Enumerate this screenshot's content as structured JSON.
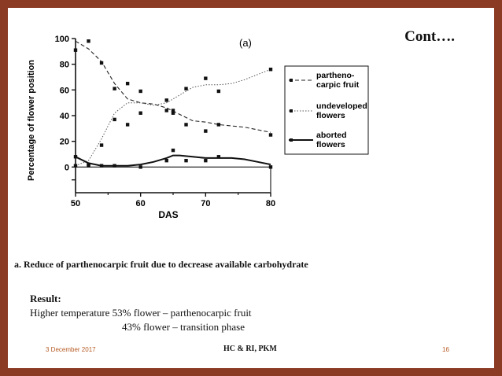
{
  "slide": {
    "title": "Cont….",
    "caption": "a. Reduce of parthenocarpic fruit due to decrease available carbohydrate",
    "result_label": "Result:",
    "result_line1": "Higher temperature 53% flower – parthenocarpic fruit",
    "result_line2": "43% flower – transition phase",
    "footer_date": "3 December 2017",
    "footer_center": "HC & RI, PKM",
    "footer_page": "16"
  },
  "chart_data": {
    "type": "line",
    "panel_label": "(a)",
    "xlabel": "DAS",
    "ylabel": "Percentage of flower position",
    "xlim": [
      50,
      80
    ],
    "ylim": [
      -20,
      100
    ],
    "x_ticks": [
      50,
      60,
      70,
      80
    ],
    "y_ticks": [
      0,
      20,
      40,
      60,
      80,
      100
    ],
    "legend_position": "right",
    "series": [
      {
        "name_lines": [
          "partheno-",
          "carpic fruit"
        ],
        "style": "dashed",
        "curve_x": [
          50,
          52,
          54,
          56,
          58,
          60,
          62,
          64,
          66,
          68,
          70,
          72,
          74,
          76,
          78,
          80
        ],
        "curve_y": [
          98,
          92,
          82,
          65,
          53,
          50,
          49,
          46,
          41,
          36,
          35,
          33,
          32,
          31,
          29,
          27
        ],
        "points": [
          [
            50,
            91
          ],
          [
            52,
            98
          ],
          [
            54,
            81
          ],
          [
            56,
            61
          ],
          [
            58,
            33
          ],
          [
            60,
            59
          ],
          [
            64,
            52
          ],
          [
            65,
            42
          ],
          [
            67,
            33
          ],
          [
            70,
            28
          ],
          [
            72,
            33
          ],
          [
            80,
            25
          ]
        ]
      },
      {
        "name_lines": [
          "undeveloped",
          "flowers"
        ],
        "style": "dotted",
        "curve_x": [
          50,
          52,
          54,
          56,
          58,
          60,
          62,
          64,
          66,
          68,
          70,
          72,
          74,
          76,
          78,
          80
        ],
        "curve_y": [
          1,
          5,
          22,
          42,
          50,
          50,
          48,
          50,
          56,
          62,
          64,
          64,
          65,
          68,
          72,
          76
        ],
        "points": [
          [
            50,
            1
          ],
          [
            52,
            1
          ],
          [
            54,
            17
          ],
          [
            56,
            37
          ],
          [
            58,
            65
          ],
          [
            60,
            42
          ],
          [
            64,
            44
          ],
          [
            65,
            44
          ],
          [
            67,
            61
          ],
          [
            70,
            69
          ],
          [
            72,
            59
          ],
          [
            80,
            76
          ]
        ]
      },
      {
        "name_lines": [
          "aborted",
          "flowers"
        ],
        "style": "solid",
        "curve_x": [
          50,
          52,
          54,
          56,
          58,
          60,
          62,
          64,
          65,
          66,
          68,
          70,
          72,
          74,
          76,
          78,
          80
        ],
        "curve_y": [
          8,
          3,
          1,
          1,
          1,
          2,
          4,
          7,
          9,
          9,
          8,
          7,
          7,
          7,
          6,
          4,
          2
        ],
        "points": [
          [
            50,
            8
          ],
          [
            52,
            2
          ],
          [
            54,
            1
          ],
          [
            56,
            1
          ],
          [
            60,
            0
          ],
          [
            64,
            5
          ],
          [
            65,
            13
          ],
          [
            67,
            5
          ],
          [
            70,
            5
          ],
          [
            72,
            8
          ],
          [
            80,
            0
          ]
        ]
      }
    ]
  }
}
